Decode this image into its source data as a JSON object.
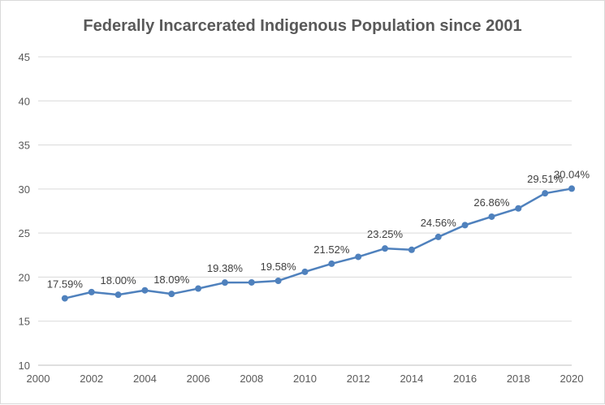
{
  "chart_data": {
    "type": "line",
    "title": "Federally Incarcerated Indigenous Population since 2001",
    "xlabel": "",
    "ylabel": "",
    "xlim": [
      2000,
      2020
    ],
    "ylim": [
      10,
      45
    ],
    "x_ticks": [
      2000,
      2002,
      2004,
      2006,
      2008,
      2010,
      2012,
      2014,
      2016,
      2018,
      2020
    ],
    "y_ticks": [
      10,
      15,
      20,
      25,
      30,
      35,
      40,
      45
    ],
    "grid": "horizontal",
    "legend": "none",
    "series": [
      {
        "color": "#4f81bd",
        "x": [
          2001,
          2002,
          2003,
          2004,
          2005,
          2006,
          2007,
          2008,
          2009,
          2010,
          2011,
          2012,
          2013,
          2014,
          2015,
          2016,
          2017,
          2018,
          2019,
          2020
        ],
        "values": [
          17.59,
          18.3,
          18.0,
          18.5,
          18.09,
          18.7,
          19.38,
          19.4,
          19.58,
          20.6,
          21.52,
          22.3,
          23.25,
          23.1,
          24.56,
          25.9,
          26.86,
          27.8,
          29.51,
          30.04
        ]
      }
    ],
    "data_labels": [
      {
        "x": 2001,
        "text": "17.59%"
      },
      {
        "x": 2003,
        "text": "18.00%"
      },
      {
        "x": 2005,
        "text": "18.09%"
      },
      {
        "x": 2007,
        "text": "19.38%"
      },
      {
        "x": 2009,
        "text": "19.58%"
      },
      {
        "x": 2011,
        "text": "21.52%"
      },
      {
        "x": 2013,
        "text": "23.25%"
      },
      {
        "x": 2015,
        "text": "24.56%"
      },
      {
        "x": 2017,
        "text": "26.86%"
      },
      {
        "x": 2019,
        "text": "29.51%"
      },
      {
        "x": 2020,
        "text": "30.04%"
      }
    ]
  }
}
